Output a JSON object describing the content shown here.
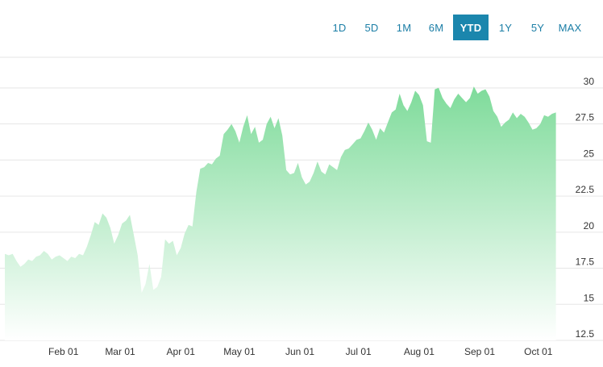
{
  "range_selector": {
    "buttons": [
      "1D",
      "5D",
      "1M",
      "6M",
      "YTD",
      "1Y",
      "5Y",
      "MAX"
    ],
    "active": "YTD"
  },
  "colors": {
    "accent": "#1b86ad",
    "button_text": "#1b7ea6",
    "area_top": "#7edb9a",
    "area_bottom": "#ffffff",
    "grid": "#e6e6e6"
  },
  "chart_data": {
    "type": "area",
    "title": "",
    "xlabel": "",
    "ylabel": "",
    "ylim": [
      12.5,
      30.5
    ],
    "y_ticks": [
      "12.5",
      "15",
      "17.5",
      "20",
      "22.5",
      "25",
      "27.5",
      "30"
    ],
    "x_ticks": [
      "Feb 01",
      "Mar 01",
      "Apr 01",
      "May 01",
      "Jun 01",
      "Jul 01",
      "Aug 01",
      "Sep 01",
      "Oct 01"
    ],
    "grid": true,
    "y_axis_side": "right",
    "x_start": "2024-01-02",
    "x_end": "2024-10-11",
    "series": [
      {
        "points": [
          [
            "2024-01-02",
            18.5
          ],
          [
            "2024-01-04",
            18.4
          ],
          [
            "2024-01-06",
            18.5
          ],
          [
            "2024-01-08",
            18.0
          ],
          [
            "2024-01-10",
            17.6
          ],
          [
            "2024-01-12",
            17.8
          ],
          [
            "2024-01-14",
            18.1
          ],
          [
            "2024-01-16",
            18.0
          ],
          [
            "2024-01-18",
            18.3
          ],
          [
            "2024-01-20",
            18.4
          ],
          [
            "2024-01-22",
            18.7
          ],
          [
            "2024-01-24",
            18.5
          ],
          [
            "2024-01-26",
            18.1
          ],
          [
            "2024-01-28",
            18.3
          ],
          [
            "2024-01-30",
            18.4
          ],
          [
            "2024-02-01",
            18.2
          ],
          [
            "2024-02-03",
            18.0
          ],
          [
            "2024-02-05",
            18.3
          ],
          [
            "2024-02-07",
            18.2
          ],
          [
            "2024-02-09",
            18.5
          ],
          [
            "2024-02-11",
            18.4
          ],
          [
            "2024-02-13",
            19.0
          ],
          [
            "2024-02-15",
            19.8
          ],
          [
            "2024-02-17",
            20.7
          ],
          [
            "2024-02-19",
            20.5
          ],
          [
            "2024-02-21",
            21.3
          ],
          [
            "2024-02-23",
            21.0
          ],
          [
            "2024-02-25",
            20.3
          ],
          [
            "2024-02-27",
            19.2
          ],
          [
            "2024-02-29",
            19.8
          ],
          [
            "2024-03-02",
            20.6
          ],
          [
            "2024-03-04",
            20.8
          ],
          [
            "2024-03-06",
            21.2
          ],
          [
            "2024-03-08",
            19.8
          ],
          [
            "2024-03-10",
            18.4
          ],
          [
            "2024-03-12",
            15.8
          ],
          [
            "2024-03-14",
            16.4
          ],
          [
            "2024-03-16",
            17.8
          ],
          [
            "2024-03-18",
            16.0
          ],
          [
            "2024-03-20",
            16.2
          ],
          [
            "2024-03-22",
            16.9
          ],
          [
            "2024-03-24",
            19.5
          ],
          [
            "2024-03-26",
            19.2
          ],
          [
            "2024-03-28",
            19.4
          ],
          [
            "2024-03-30",
            18.4
          ],
          [
            "2024-04-01",
            18.9
          ],
          [
            "2024-04-03",
            19.9
          ],
          [
            "2024-04-05",
            20.5
          ],
          [
            "2024-04-07",
            20.4
          ],
          [
            "2024-04-09",
            22.8
          ],
          [
            "2024-04-11",
            24.4
          ],
          [
            "2024-04-13",
            24.5
          ],
          [
            "2024-04-15",
            24.8
          ],
          [
            "2024-04-17",
            24.7
          ],
          [
            "2024-04-19",
            25.1
          ],
          [
            "2024-04-21",
            25.3
          ],
          [
            "2024-04-23",
            26.8
          ],
          [
            "2024-04-25",
            27.1
          ],
          [
            "2024-04-27",
            27.5
          ],
          [
            "2024-04-29",
            27.0
          ],
          [
            "2024-05-01",
            26.2
          ],
          [
            "2024-05-03",
            27.3
          ],
          [
            "2024-05-05",
            28.1
          ],
          [
            "2024-05-07",
            26.8
          ],
          [
            "2024-05-09",
            27.3
          ],
          [
            "2024-05-11",
            26.2
          ],
          [
            "2024-05-13",
            26.4
          ],
          [
            "2024-05-15",
            27.5
          ],
          [
            "2024-05-17",
            28.0
          ],
          [
            "2024-05-19",
            27.2
          ],
          [
            "2024-05-21",
            27.9
          ],
          [
            "2024-05-23",
            26.7
          ],
          [
            "2024-05-25",
            24.3
          ],
          [
            "2024-05-27",
            24.0
          ],
          [
            "2024-05-29",
            24.1
          ],
          [
            "2024-05-31",
            24.8
          ],
          [
            "2024-06-02",
            23.8
          ],
          [
            "2024-06-04",
            23.3
          ],
          [
            "2024-06-06",
            23.5
          ],
          [
            "2024-06-08",
            24.1
          ],
          [
            "2024-06-10",
            24.9
          ],
          [
            "2024-06-12",
            24.2
          ],
          [
            "2024-06-14",
            24.0
          ],
          [
            "2024-06-16",
            24.7
          ],
          [
            "2024-06-18",
            24.5
          ],
          [
            "2024-06-20",
            24.3
          ],
          [
            "2024-06-22",
            25.2
          ],
          [
            "2024-06-24",
            25.7
          ],
          [
            "2024-06-26",
            25.8
          ],
          [
            "2024-06-28",
            26.1
          ],
          [
            "2024-06-30",
            26.4
          ],
          [
            "2024-07-02",
            26.5
          ],
          [
            "2024-07-04",
            27.0
          ],
          [
            "2024-07-06",
            27.6
          ],
          [
            "2024-07-08",
            27.1
          ],
          [
            "2024-07-10",
            26.4
          ],
          [
            "2024-07-12",
            27.2
          ],
          [
            "2024-07-14",
            26.9
          ],
          [
            "2024-07-16",
            27.6
          ],
          [
            "2024-07-18",
            28.3
          ],
          [
            "2024-07-20",
            28.5
          ],
          [
            "2024-07-22",
            29.6
          ],
          [
            "2024-07-24",
            28.8
          ],
          [
            "2024-07-26",
            28.4
          ],
          [
            "2024-07-28",
            29.0
          ],
          [
            "2024-07-30",
            29.8
          ],
          [
            "2024-08-01",
            29.5
          ],
          [
            "2024-08-03",
            28.8
          ],
          [
            "2024-08-05",
            26.3
          ],
          [
            "2024-08-07",
            26.2
          ],
          [
            "2024-08-09",
            29.9
          ],
          [
            "2024-08-11",
            30.0
          ],
          [
            "2024-08-13",
            29.3
          ],
          [
            "2024-08-15",
            28.9
          ],
          [
            "2024-08-17",
            28.6
          ],
          [
            "2024-08-19",
            29.2
          ],
          [
            "2024-08-21",
            29.6
          ],
          [
            "2024-08-23",
            29.3
          ],
          [
            "2024-08-25",
            29.0
          ],
          [
            "2024-08-27",
            29.3
          ],
          [
            "2024-08-29",
            30.1
          ],
          [
            "2024-08-31",
            29.6
          ],
          [
            "2024-09-02",
            29.8
          ],
          [
            "2024-09-04",
            29.9
          ],
          [
            "2024-09-06",
            29.4
          ],
          [
            "2024-09-08",
            28.4
          ],
          [
            "2024-09-10",
            28.0
          ],
          [
            "2024-09-12",
            27.3
          ],
          [
            "2024-09-14",
            27.6
          ],
          [
            "2024-09-16",
            27.8
          ],
          [
            "2024-09-18",
            28.3
          ],
          [
            "2024-09-20",
            27.9
          ],
          [
            "2024-09-22",
            28.2
          ],
          [
            "2024-09-24",
            28.0
          ],
          [
            "2024-09-26",
            27.6
          ],
          [
            "2024-09-28",
            27.1
          ],
          [
            "2024-09-30",
            27.2
          ],
          [
            "2024-10-02",
            27.5
          ],
          [
            "2024-10-04",
            28.1
          ],
          [
            "2024-10-06",
            28.0
          ],
          [
            "2024-10-08",
            28.2
          ],
          [
            "2024-10-10",
            28.3
          ]
        ]
      }
    ]
  }
}
